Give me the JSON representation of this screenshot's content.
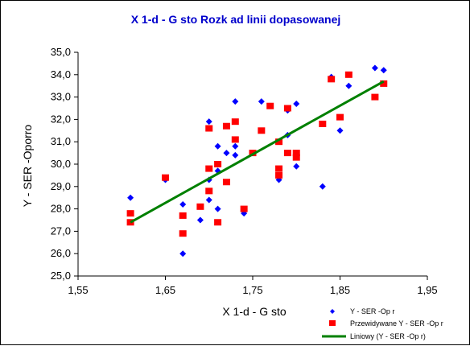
{
  "chart_data": {
    "type": "scatter",
    "title": "X 1-d - G  sto     Rozk ad linii dopasowanej",
    "xlabel": "X 1-d - G  sto",
    "ylabel": "Y - SER -Oporro",
    "xlim": [
      1.55,
      1.95
    ],
    "ylim": [
      25.0,
      35.0
    ],
    "x_ticks": [
      "1,55",
      "1,65",
      "1,75",
      "1,85",
      "1,95"
    ],
    "y_ticks": [
      "25,0",
      "26,0",
      "27,0",
      "28,0",
      "29,0",
      "30,0",
      "31,0",
      "32,0",
      "33,0",
      "34,0",
      "35,0"
    ],
    "grid": false,
    "legend_position": "bottom-right",
    "series": [
      {
        "name": "Y - SER -Op r",
        "marker": "diamond",
        "color": "#0000ff",
        "points": [
          [
            1.61,
            28.5
          ],
          [
            1.65,
            29.3
          ],
          [
            1.67,
            28.2
          ],
          [
            1.67,
            26.0
          ],
          [
            1.69,
            27.5
          ],
          [
            1.7,
            31.9
          ],
          [
            1.7,
            29.3
          ],
          [
            1.7,
            28.4
          ],
          [
            1.71,
            30.8
          ],
          [
            1.71,
            29.7
          ],
          [
            1.71,
            28.0
          ],
          [
            1.72,
            30.5
          ],
          [
            1.73,
            32.8
          ],
          [
            1.73,
            30.8
          ],
          [
            1.73,
            30.4
          ],
          [
            1.74,
            27.8
          ],
          [
            1.76,
            32.8
          ],
          [
            1.77,
            32.6
          ],
          [
            1.78,
            29.3
          ],
          [
            1.79,
            32.4
          ],
          [
            1.79,
            31.3
          ],
          [
            1.8,
            32.7
          ],
          [
            1.8,
            29.9
          ],
          [
            1.83,
            29.0
          ],
          [
            1.84,
            33.9
          ],
          [
            1.85,
            31.5
          ],
          [
            1.86,
            33.5
          ],
          [
            1.89,
            34.3
          ],
          [
            1.9,
            34.2
          ]
        ]
      },
      {
        "name": "Przewidywane Y - SER -Op r",
        "marker": "square",
        "color": "#ff0000",
        "points": [
          [
            1.61,
            27.8
          ],
          [
            1.61,
            27.4
          ],
          [
            1.65,
            29.4
          ],
          [
            1.67,
            27.7
          ],
          [
            1.67,
            26.9
          ],
          [
            1.69,
            28.1
          ],
          [
            1.7,
            31.6
          ],
          [
            1.7,
            29.8
          ],
          [
            1.7,
            28.8
          ],
          [
            1.71,
            30.0
          ],
          [
            1.71,
            27.4
          ],
          [
            1.72,
            31.7
          ],
          [
            1.72,
            29.2
          ],
          [
            1.73,
            31.9
          ],
          [
            1.73,
            31.1
          ],
          [
            1.74,
            28.0
          ],
          [
            1.75,
            30.5
          ],
          [
            1.76,
            31.5
          ],
          [
            1.77,
            32.6
          ],
          [
            1.78,
            31.0
          ],
          [
            1.78,
            29.8
          ],
          [
            1.78,
            29.5
          ],
          [
            1.79,
            32.5
          ],
          [
            1.79,
            30.5
          ],
          [
            1.8,
            30.5
          ],
          [
            1.8,
            30.3
          ],
          [
            1.83,
            31.8
          ],
          [
            1.84,
            33.8
          ],
          [
            1.85,
            32.1
          ],
          [
            1.86,
            34.0
          ],
          [
            1.89,
            33.0
          ],
          [
            1.9,
            33.6
          ]
        ]
      },
      {
        "name": "Liniowy (Y - SER -Op r)",
        "type": "line",
        "color": "#008000",
        "points": [
          [
            1.61,
            27.4
          ],
          [
            1.9,
            33.7
          ]
        ]
      }
    ]
  }
}
